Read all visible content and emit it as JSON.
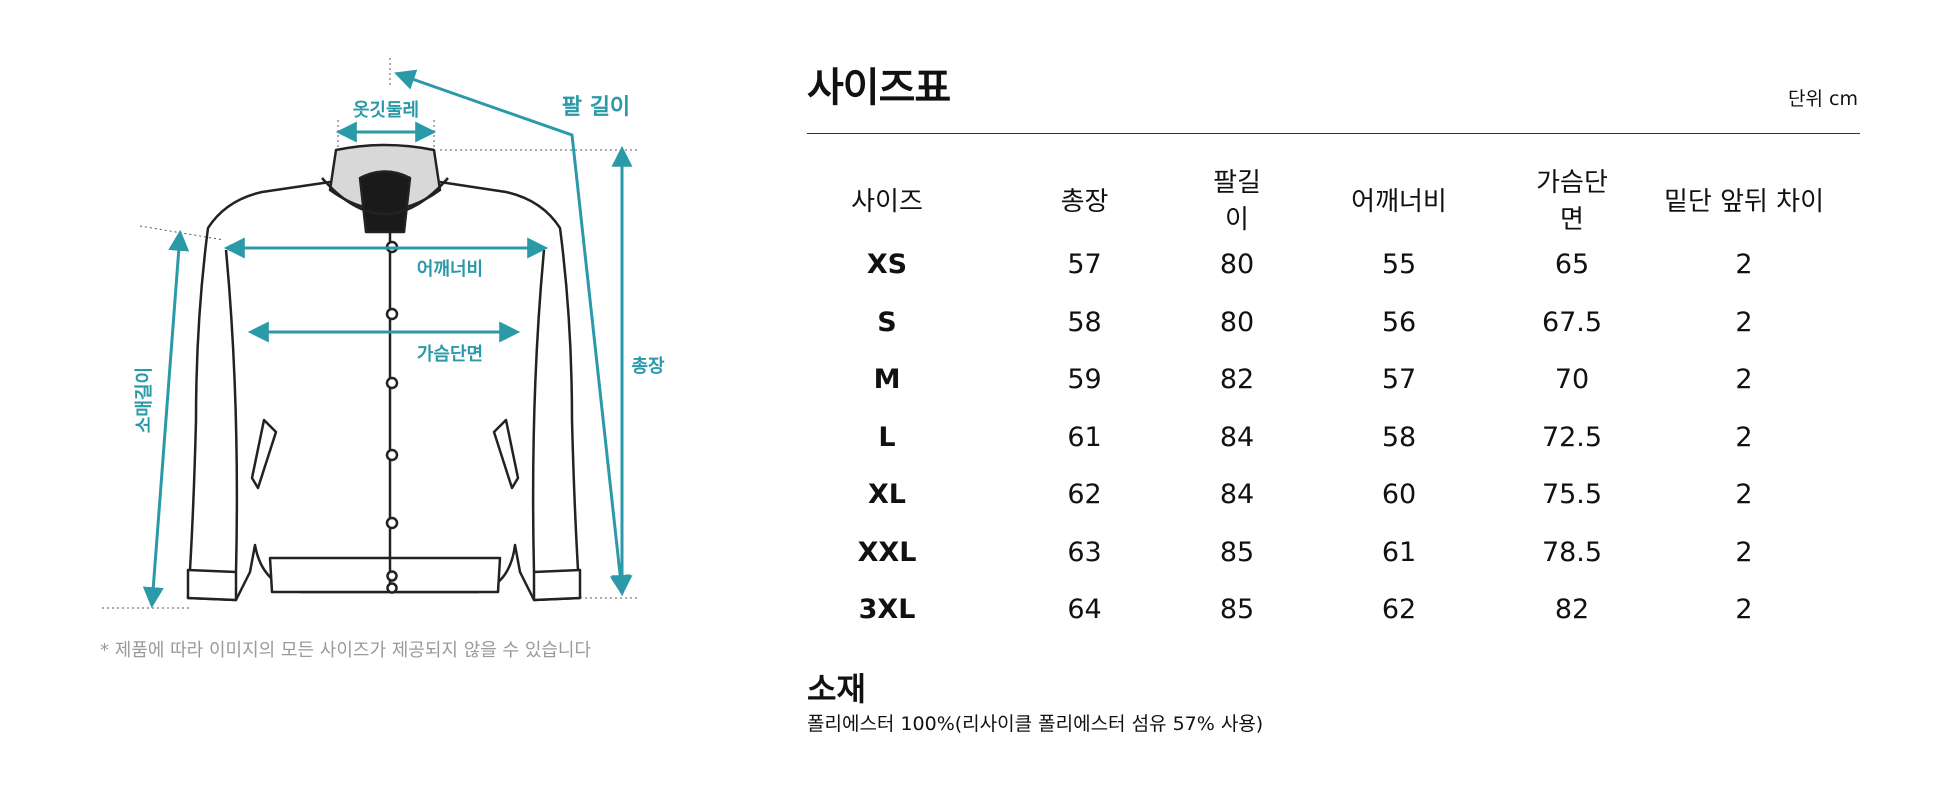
{
  "diagram": {
    "labels": {
      "collar": "옷깃둘레",
      "arm_length": "팔 길이",
      "shoulder": "어깨너비",
      "chest": "가슴단면",
      "total_length": "총장",
      "sleeve_length": "소매길이"
    },
    "accent_color": "#2b9aa8"
  },
  "note": "* 제품에 따라 이미지의 모든 사이즈가 제공되지 않을 수 있습니다",
  "size_chart": {
    "title": "사이즈표",
    "unit": "단위 cm",
    "headers": [
      "사이즈",
      "총장",
      "팔길이",
      "어깨너비",
      "가슴단면",
      "밑단 앞뒤 차이"
    ],
    "rows": [
      [
        "XS",
        "57",
        "80",
        "55",
        "65",
        "2"
      ],
      [
        "S",
        "58",
        "80",
        "56",
        "67.5",
        "2"
      ],
      [
        "M",
        "59",
        "82",
        "57",
        "70",
        "2"
      ],
      [
        "L",
        "61",
        "84",
        "58",
        "72.5",
        "2"
      ],
      [
        "XL",
        "62",
        "84",
        "60",
        "75.5",
        "2"
      ],
      [
        "XXL",
        "63",
        "85",
        "61",
        "78.5",
        "2"
      ],
      [
        "3XL",
        "64",
        "85",
        "62",
        "82",
        "2"
      ]
    ]
  },
  "material": {
    "title": "소재",
    "text": "폴리에스터 100%(리사이클 폴리에스터 섬유 57% 사용)"
  }
}
